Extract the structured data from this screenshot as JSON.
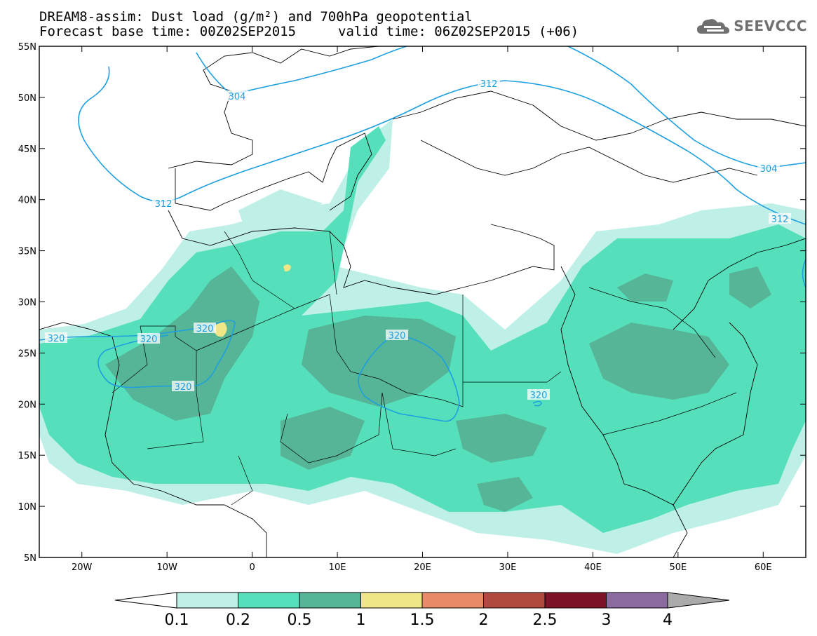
{
  "header": {
    "line1": "DREAM8-assim: Dust load (g/m²) and 700hPa geopotential",
    "line2": "Forecast base time: 00Z02SEP2015",
    "valid": "valid time: 06Z02SEP2015 (+06)"
  },
  "logo": {
    "text": "SEEVCCC",
    "icon": "cloud-icon"
  },
  "map": {
    "lat_labels": [
      "55N",
      "50N",
      "45N",
      "40N",
      "35N",
      "30N",
      "25N",
      "20N",
      "15N",
      "10N",
      "5N"
    ],
    "lon_labels": [
      "20W",
      "10W",
      "0",
      "10E",
      "20E",
      "30E",
      "40E",
      "50E",
      "60E"
    ],
    "lat_range": [
      5,
      55
    ],
    "lon_range": [
      -25,
      65
    ],
    "contour_labels": [
      "304",
      "312",
      "312",
      "304",
      "312",
      "320",
      "320",
      "320",
      "320",
      "320",
      "320"
    ]
  },
  "legend": {
    "labels": [
      "0.1",
      "0.2",
      "0.5",
      "1",
      "1.5",
      "2",
      "2.5",
      "3",
      "4"
    ],
    "colors": [
      "#bff0e8",
      "#55e0bb",
      "#55b596",
      "#f0e685",
      "#e88b68",
      "#b04a3e",
      "#7d1329",
      "#8b6aa0",
      "#aaaaaa"
    ]
  }
}
